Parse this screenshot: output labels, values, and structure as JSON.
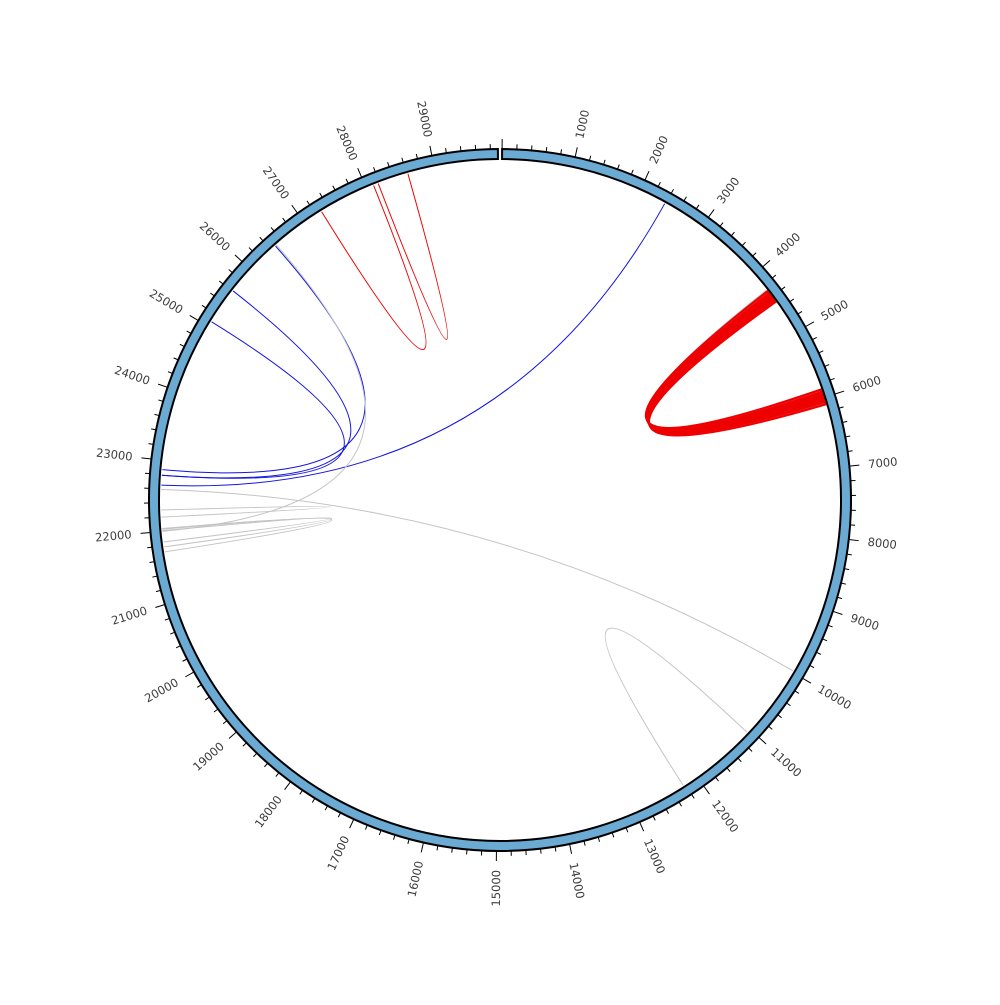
{
  "chart_data": {
    "type": "circos",
    "title": "",
    "genome_length": 29903,
    "axis": {
      "label_interval": 1000,
      "minor_tick_interval": 200,
      "tick_labels": [
        "1000",
        "2000",
        "3000",
        "4000",
        "5000",
        "6000",
        "7000",
        "8000",
        "9000",
        "10000",
        "11000",
        "12000",
        "13000",
        "14000",
        "15000",
        "16000",
        "17000",
        "18000",
        "19000",
        "20000",
        "21000",
        "22000",
        "23000",
        "24000",
        "25000",
        "26000",
        "27000",
        "28000",
        "29000"
      ]
    },
    "colors": {
      "ring_fill": "#6aaad3",
      "ring_stroke": "#000000",
      "red": "#ee0000",
      "blue": "#1414dd",
      "gray": "#c4c4c4",
      "tick_label": "#3c3c3c"
    },
    "links": [
      {
        "color": "gray",
        "width": 1,
        "source_start": 4280,
        "source_end": 4380,
        "target_start": 5950,
        "target_end": 6050
      },
      {
        "color": "red",
        "width": 2,
        "source_start": 4300,
        "source_end": 4420,
        "target_start": 5880,
        "target_end": 6020
      },
      {
        "color": "red",
        "width": 2,
        "source_start": 4340,
        "source_end": 4460,
        "target_start": 5920,
        "target_end": 6060
      },
      {
        "color": "red",
        "width": 2,
        "source_start": 4370,
        "source_end": 4490,
        "target_start": 5960,
        "target_end": 6100
      },
      {
        "color": "red",
        "width": 1,
        "source_start": 27290,
        "source_end": 27290,
        "target_start": 28110,
        "target_end": 28110
      },
      {
        "color": "red",
        "width": 1,
        "source_start": 28180,
        "source_end": 28180,
        "target_start": 28620,
        "target_end": 28620
      },
      {
        "color": "blue",
        "width": 1,
        "source_start": 2390,
        "source_end": 2390,
        "target_start": 22650,
        "target_end": 22650
      },
      {
        "color": "blue",
        "width": 1,
        "source_start": 22870,
        "source_end": 22870,
        "target_start": 26480,
        "target_end": 26480
      },
      {
        "color": "blue",
        "width": 1,
        "source_start": 22790,
        "source_end": 22790,
        "target_start": 25610,
        "target_end": 25610
      },
      {
        "color": "blue",
        "width": 1,
        "source_start": 22790,
        "source_end": 22790,
        "target_start": 25080,
        "target_end": 25080
      },
      {
        "color": "gray",
        "width": 1,
        "source_start": 22000,
        "source_end": 22000,
        "target_start": 26500,
        "target_end": 26500
      },
      {
        "color": "gray",
        "width": 1,
        "source_start": 22590,
        "source_end": 22590,
        "target_start": 9980,
        "target_end": 9980
      },
      {
        "color": "gray",
        "width": 1,
        "source_start": 11060,
        "source_end": 11060,
        "target_start": 12230,
        "target_end": 12230
      },
      {
        "color": "gray",
        "width": 1,
        "source_start": 22200,
        "source_end": 22200,
        "target_start": 22300,
        "target_end": 22300
      },
      {
        "color": "gray",
        "width": 1,
        "source_start": 21850,
        "source_end": 21850,
        "target_start": 22010,
        "target_end": 22010
      },
      {
        "color": "gray",
        "width": 1,
        "source_start": 21780,
        "source_end": 21780,
        "target_start": 22030,
        "target_end": 22030
      },
      {
        "color": "gray",
        "width": 1,
        "source_start": 21710,
        "source_end": 21710,
        "target_start": 22040,
        "target_end": 22040
      }
    ]
  }
}
